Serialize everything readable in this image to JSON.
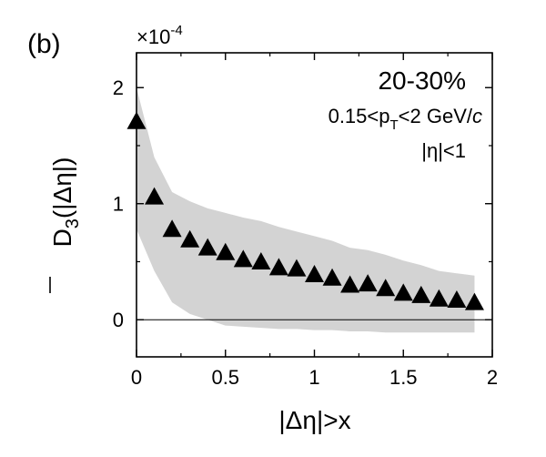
{
  "chart_data": {
    "type": "scatter",
    "panel_label": "(b)",
    "multiplier": "×10",
    "multiplier_exp": "-4",
    "annotations": {
      "centrality": "20-30%",
      "pt_pre": "0.15<p",
      "pt_sub": "T",
      "pt_post": "<2 GeV/",
      "pt_unit_italic": "c",
      "eta_cut": "|η|<1"
    },
    "xlabel": "|Δη|>x",
    "ylabel_main": "D",
    "ylabel_sub": "3",
    "ylabel_tail": "(|Δη|)",
    "xlim": [
      0,
      2
    ],
    "ylim": [
      -0.32,
      2.3
    ],
    "x_ticks": [
      {
        "v": 0,
        "label": "0"
      },
      {
        "v": 0.5,
        "label": "0.5"
      },
      {
        "v": 1,
        "label": "1"
      },
      {
        "v": 1.5,
        "label": "1.5"
      },
      {
        "v": 2,
        "label": "2"
      }
    ],
    "y_ticks": [
      {
        "v": 0,
        "label": "0"
      },
      {
        "v": 1,
        "label": "1"
      },
      {
        "v": 2,
        "label": "2"
      }
    ],
    "zero_line": true,
    "band_color": "#d3d3d3",
    "marker_color": "#000000",
    "band": {
      "x": [
        0,
        0.1,
        0.2,
        0.3,
        0.4,
        0.5,
        0.6,
        0.7,
        0.8,
        0.9,
        1.0,
        1.1,
        1.2,
        1.3,
        1.4,
        1.5,
        1.6,
        1.7,
        1.8,
        1.9
      ],
      "upper": [
        2.0,
        1.4,
        1.1,
        1.02,
        0.96,
        0.92,
        0.88,
        0.85,
        0.8,
        0.76,
        0.72,
        0.68,
        0.62,
        0.6,
        0.56,
        0.51,
        0.47,
        0.42,
        0.4,
        0.38
      ],
      "lower": [
        0.78,
        0.42,
        0.15,
        0.05,
        0.0,
        -0.05,
        -0.06,
        -0.07,
        -0.08,
        -0.08,
        -0.09,
        -0.09,
        -0.1,
        -0.1,
        -0.11,
        -0.11,
        -0.11,
        -0.11,
        -0.11,
        -0.11
      ]
    },
    "series": [
      {
        "x": [
          0,
          0.1,
          0.2,
          0.3,
          0.4,
          0.5,
          0.6,
          0.7,
          0.8,
          0.9,
          1.0,
          1.1,
          1.2,
          1.3,
          1.4,
          1.5,
          1.6,
          1.7,
          1.8,
          1.9
        ],
        "values": [
          1.7,
          1.05,
          0.77,
          0.68,
          0.61,
          0.57,
          0.51,
          0.49,
          0.44,
          0.43,
          0.38,
          0.35,
          0.29,
          0.3,
          0.26,
          0.22,
          0.2,
          0.17,
          0.16,
          0.14
        ]
      }
    ]
  }
}
